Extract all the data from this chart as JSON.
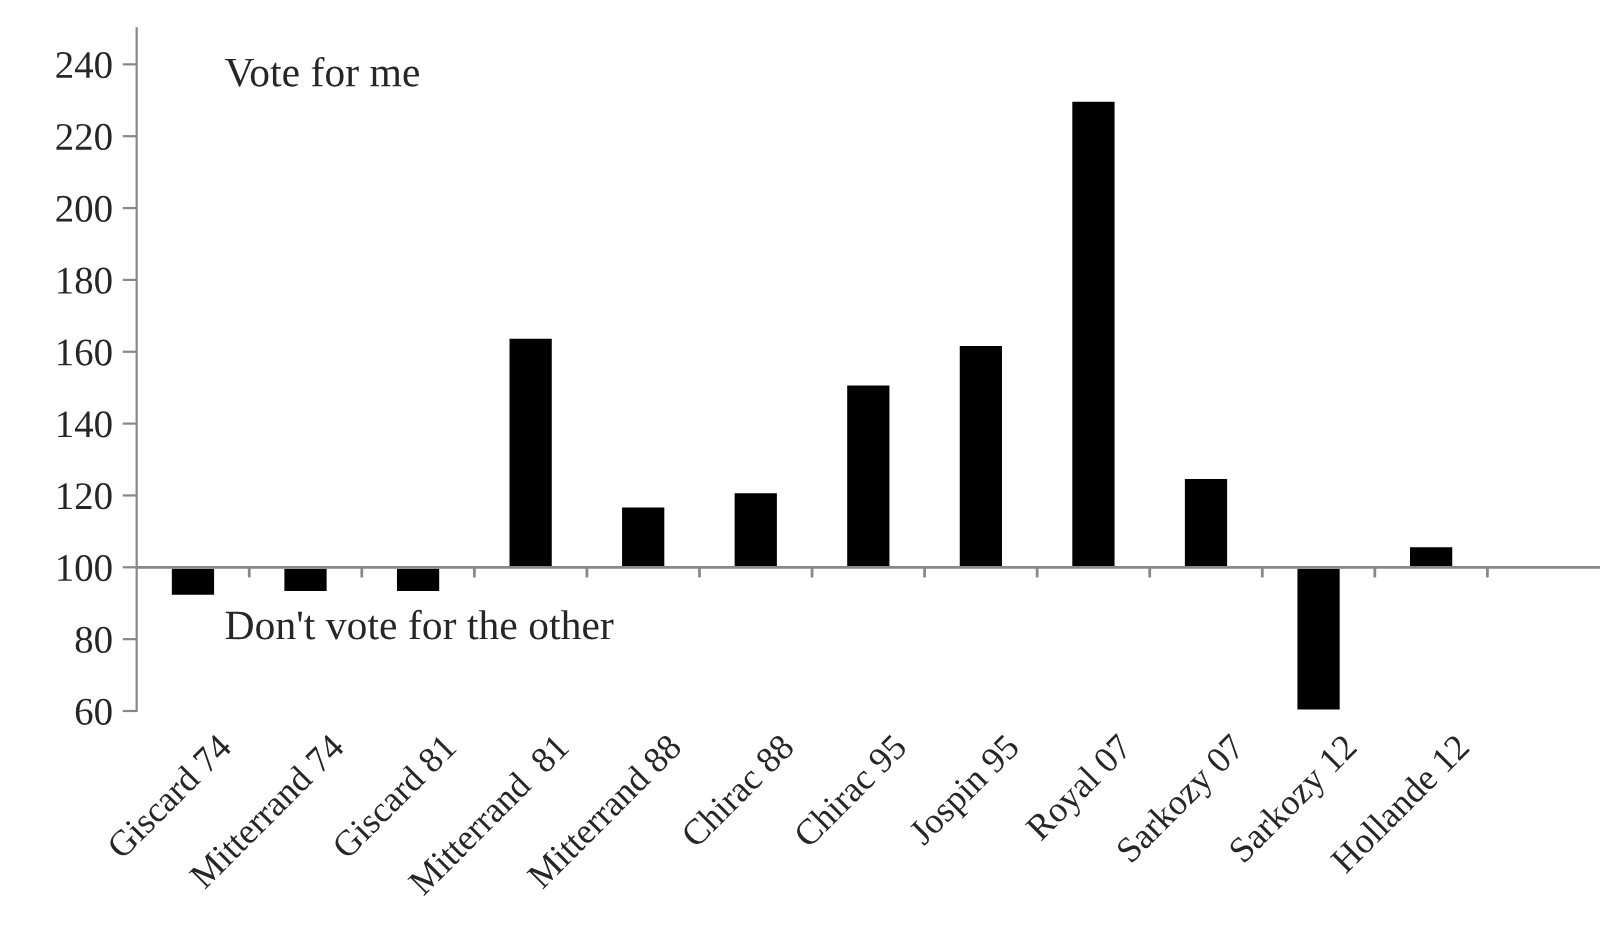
{
  "chart_data": {
    "type": "bar",
    "categories": [
      "Giscard 74",
      "Mitterrand 74",
      "Giscard 81",
      "Mitterrand  81",
      "Mitterrand 88",
      "Chirac 88",
      "Chirac 95",
      "Jospin 95",
      "Royal 07",
      "Sarkozy 07",
      "Sarkozy 12",
      "Hollande 12"
    ],
    "base": [
      100,
      100,
      100,
      100,
      100,
      100,
      100,
      100,
      100,
      100,
      100,
      100
    ],
    "values": [
      -8,
      -7,
      -7,
      64,
      17,
      21,
      51,
      62,
      130,
      25,
      -40,
      6
    ],
    "color": "#000000",
    "ylim": [
      60,
      250
    ],
    "yticks": [
      60,
      80,
      100,
      120,
      140,
      160,
      180,
      200,
      220,
      240
    ],
    "annotations": [
      "Vote for me",
      "Don't vote for the other"
    ],
    "ref_lines": [
      {
        "axis": "y",
        "value": 100,
        "color": "#888888"
      }
    ],
    "grid": false,
    "legend": false
  }
}
